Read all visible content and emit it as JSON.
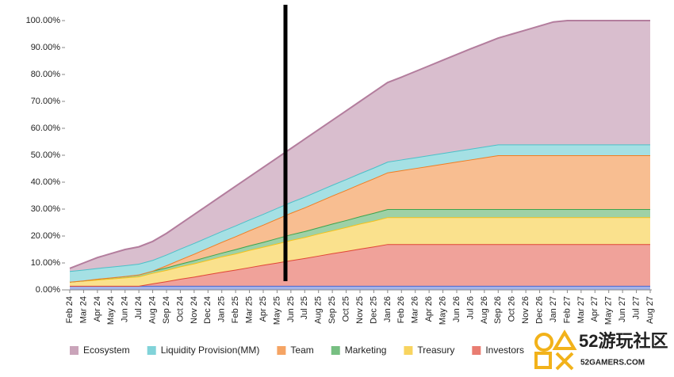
{
  "chart_data": {
    "type": "stacked_area",
    "categories": [
      "Feb 24",
      "Mar 24",
      "Apr 24",
      "May 24",
      "Jun 24",
      "Jul 24",
      "Aug 24",
      "Sep 24",
      "Oct 24",
      "Nov 24",
      "Dec 24",
      "Jan 25",
      "Feb 25",
      "Mar 25",
      "Apr 25",
      "May 25",
      "Jun 25",
      "Jul 25",
      "Aug 25",
      "Sep 25",
      "Oct 25",
      "Nov 25",
      "Dec 25",
      "Jan 26",
      "Feb 26",
      "Mar 26",
      "Apr 26",
      "May 26",
      "Jun 26",
      "Jul 26",
      "Aug 26",
      "Sep 26",
      "Oct 26",
      "Nov 26",
      "Dec 26",
      "Jan 27",
      "Feb 27",
      "Mar 27",
      "Apr 27",
      "May 27",
      "Jun 27",
      "Jul 27",
      "Aug 27"
    ],
    "series": [
      {
        "color": "#4a67d0",
        "values": [
          1.5,
          1.5,
          1.5,
          1.5,
          1.5,
          1.5,
          1.5,
          1.5,
          1.5,
          1.5,
          1.5,
          1.5,
          1.5,
          1.5,
          1.5,
          1.5,
          1.5,
          1.5,
          1.5,
          1.5,
          1.5,
          1.5,
          1.5,
          1.5,
          1.5,
          1.5,
          1.5,
          1.5,
          1.5,
          1.5,
          1.5,
          1.5,
          1.5,
          1.5,
          1.5,
          1.5,
          1.5,
          1.5,
          1.5,
          1.5,
          1.5,
          1.5,
          1.5
        ]
      },
      {
        "name": "Investors",
        "color": "#e04535",
        "values": [
          0,
          0,
          0,
          0,
          0,
          0,
          0.9,
          1.7,
          2.6,
          3.4,
          4.3,
          5.2,
          6.0,
          6.9,
          7.8,
          8.6,
          9.5,
          10.3,
          11.2,
          12.1,
          12.9,
          13.8,
          14.6,
          15.5,
          15.5,
          15.5,
          15.5,
          15.5,
          15.5,
          15.5,
          15.5,
          15.5,
          15.5,
          15.5,
          15.5,
          15.5,
          15.5,
          15.5,
          15.5,
          15.5,
          15.5,
          15.5,
          15.5
        ]
      },
      {
        "name": "Treasury",
        "color": "#f5c21a",
        "values": [
          1.5,
          1.9,
          2.3,
          2.7,
          3.1,
          3.5,
          3.9,
          4.2,
          4.6,
          4.9,
          5.3,
          5.7,
          6.0,
          6.4,
          6.7,
          7.1,
          7.5,
          7.8,
          8.2,
          8.5,
          8.9,
          9.3,
          9.6,
          10,
          10,
          10,
          10,
          10,
          10,
          10,
          10,
          10,
          10,
          10,
          10,
          10,
          10,
          10,
          10,
          10,
          10,
          10,
          10
        ]
      },
      {
        "name": "Marketing",
        "color": "#3da34d",
        "values": [
          0,
          0.1,
          0.3,
          0.4,
          0.5,
          0.7,
          0.8,
          0.9,
          1.0,
          1.2,
          1.3,
          1.4,
          1.6,
          1.7,
          1.8,
          2.0,
          2.1,
          2.2,
          2.3,
          2.5,
          2.6,
          2.7,
          2.9,
          3,
          3,
          3,
          3,
          3,
          3,
          3,
          3,
          3,
          3,
          3,
          3,
          3,
          3,
          3,
          3,
          3,
          3,
          3,
          3
        ]
      },
      {
        "name": "Team",
        "color": "#f07d22",
        "values": [
          0,
          0,
          0,
          0,
          0,
          0,
          0,
          0.8,
          1.6,
          2.4,
          3.2,
          4.0,
          4.8,
          5.6,
          6.4,
          7.2,
          8.0,
          8.8,
          9.6,
          10.4,
          11.2,
          12.0,
          12.8,
          13.6,
          14.4,
          15.2,
          16.0,
          16.8,
          17.6,
          18.4,
          19.2,
          20,
          20,
          20,
          20,
          20,
          20,
          20,
          20,
          20,
          20,
          20,
          20
        ]
      },
      {
        "name": "Liquidity Provision(MM)",
        "color": "#4bc0c8",
        "values": [
          4,
          4,
          4,
          4,
          4,
          4,
          4,
          4,
          4,
          4,
          4,
          4,
          4,
          4,
          4,
          4,
          4,
          4,
          4,
          4,
          4,
          4,
          4,
          4,
          4,
          4,
          4,
          4,
          4,
          4,
          4,
          4,
          4,
          4,
          4,
          4,
          4,
          4,
          4,
          4,
          4,
          4,
          4
        ]
      },
      {
        "name": "Ecosystem",
        "color": "#b37d9d",
        "values": [
          1.0,
          2.5,
          3.9,
          4.9,
          5.9,
          6.3,
          6.9,
          7.9,
          9.2,
          10.6,
          11.9,
          13.2,
          14.6,
          15.9,
          17.3,
          18.6,
          19.9,
          21.4,
          22.7,
          24.0,
          25.4,
          26.7,
          28.1,
          29.4,
          30.6,
          31.9,
          33.2,
          34.5,
          35.8,
          37.1,
          38.3,
          39.5,
          41.0,
          42.5,
          44.0,
          45.5,
          46.0,
          46.0,
          46.0,
          46.0,
          46.0,
          46.0,
          46.0
        ]
      }
    ],
    "ylim": [
      0,
      100
    ],
    "yticks": [
      {
        "value": 0,
        "label": "0.00%"
      },
      {
        "value": 10,
        "label": "10.00%"
      },
      {
        "value": 20,
        "label": "20.00%"
      },
      {
        "value": 30,
        "label": "30.00%"
      },
      {
        "value": 40,
        "label": "40.00%"
      },
      {
        "value": 50,
        "label": "50.00%"
      },
      {
        "value": 60,
        "label": "60.00%"
      },
      {
        "value": 70,
        "label": "70.00%"
      },
      {
        "value": 80,
        "label": "80.00%"
      },
      {
        "value": 90,
        "label": "90.00%"
      },
      {
        "value": 100,
        "label": "100.00%"
      }
    ],
    "grid": false,
    "legend_order": [
      6,
      5,
      4,
      3,
      2,
      1
    ]
  },
  "watermark": {
    "title": "52游玩社区",
    "url": "52GAMERS.COM"
  }
}
